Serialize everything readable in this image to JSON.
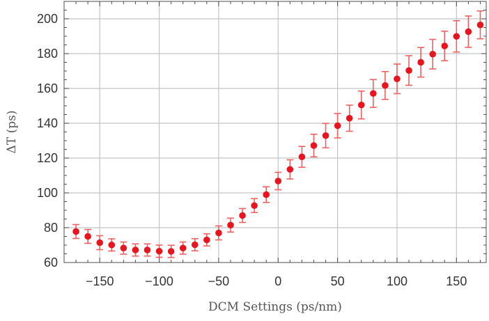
{
  "chart_data": {
    "type": "scatter",
    "xlabel": "DCM Settings (ps/nm)",
    "ylabel": "ΔT (ps)",
    "xlim": [
      -180,
      175
    ],
    "ylim": [
      60,
      210
    ],
    "x_ticks": [
      -150,
      -100,
      -50,
      0,
      50,
      100,
      150
    ],
    "x_tick_labels": [
      "−150",
      "−100",
      "−50",
      "0",
      "50",
      "100",
      "150"
    ],
    "y_ticks": [
      60,
      80,
      100,
      120,
      140,
      160,
      180,
      200
    ],
    "y_tick_labels": [
      "60",
      "80",
      "100",
      "120",
      "140",
      "160",
      "180",
      "200"
    ],
    "grid": true,
    "marker_color": "#e8141e",
    "error_bar_color": "#f06060",
    "series": [
      {
        "x": [
          -170,
          -160,
          -150,
          -140,
          -130,
          -120,
          -110,
          -100,
          -90,
          -80,
          -70,
          -60,
          -50,
          -40,
          -30,
          -20,
          -10,
          0,
          10,
          20,
          30,
          40,
          50,
          60,
          70,
          80,
          90,
          100,
          110,
          120,
          130,
          140,
          150,
          160,
          170
        ],
        "y": [
          77.8,
          75,
          71.4,
          70.1,
          68.3,
          67.2,
          67.2,
          66.5,
          66.4,
          68.3,
          70.2,
          73,
          77,
          81.5,
          87,
          92.7,
          99,
          106.8,
          113.5,
          120.7,
          127.2,
          132.9,
          138.6,
          142.9,
          150.5,
          157.1,
          161.7,
          165.5,
          170.3,
          175,
          179.7,
          184.4,
          189.9,
          192.6,
          196.5
        ],
        "err": [
          4,
          4,
          4,
          3.5,
          3.5,
          3.5,
          3.5,
          3.5,
          3.5,
          3.5,
          3.5,
          3.5,
          4,
          4,
          4,
          4,
          4.5,
          5,
          5.5,
          6,
          6.5,
          7,
          7,
          7.5,
          8,
          8,
          8,
          8.5,
          8.5,
          8.5,
          8.5,
          8.5,
          9,
          9,
          8
        ]
      }
    ]
  }
}
